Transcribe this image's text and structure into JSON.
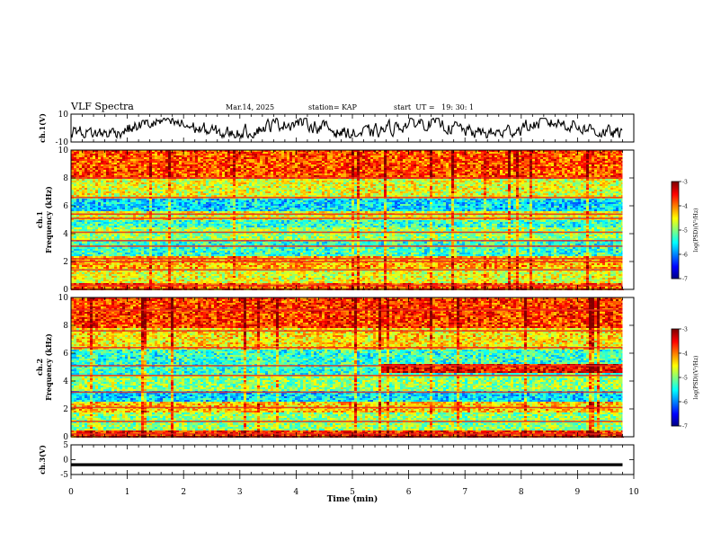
{
  "header": {
    "title": "VLF Spectra",
    "date": "Mar.14, 2025",
    "station": "station= KAP",
    "start": "start  UT =   19: 30: 1"
  },
  "chart_data": [
    {
      "type": "line",
      "panel": "ch1-waveform",
      "ylabel": "ch.1(V)",
      "ylim": [
        -10,
        10
      ],
      "yticks": [
        "10",
        "-10"
      ],
      "xlim": [
        0,
        10
      ],
      "x_extent_min": 9.8,
      "note_values": "continuous noisy waveform oscillating roughly between -6 and +6 V"
    },
    {
      "type": "heatmap",
      "panel": "ch1-spectrogram",
      "ylabel": "ch.1\nFrequency (kHz)",
      "ylabel_lines": [
        "ch.1",
        "Frequency (kHz)"
      ],
      "ylim": [
        0,
        10
      ],
      "yticks": [
        "0",
        "2",
        "4",
        "6",
        "8",
        "10"
      ],
      "xlim": [
        0,
        10
      ],
      "x_extent_min": 9.8,
      "colorbar": {
        "label": "log(PSD)(V²/Hz)",
        "range": [
          -7,
          -3
        ],
        "ticks": [
          "-3",
          "-4",
          "-5",
          "-6",
          "-7"
        ],
        "colormap": "jet"
      },
      "horizontal_lines_khz": [
        0.3,
        1.4,
        2.0,
        2.2,
        3.1,
        3.5,
        4.1,
        5.1,
        5.4,
        6.6,
        8.0
      ],
      "bands_log_psd": [
        {
          "from": 0,
          "to": 0.5,
          "level": -3.8
        },
        {
          "from": 0.5,
          "to": 1.5,
          "level": -4.6
        },
        {
          "from": 1.5,
          "to": 2.4,
          "level": -4.2
        },
        {
          "from": 2.4,
          "to": 3.6,
          "level": -5.3
        },
        {
          "from": 3.6,
          "to": 4.4,
          "level": -4.9
        },
        {
          "from": 4.4,
          "to": 5.0,
          "level": -5.3
        },
        {
          "from": 5.0,
          "to": 5.6,
          "level": -4.6
        },
        {
          "from": 5.6,
          "to": 6.5,
          "level": -5.6
        },
        {
          "from": 6.5,
          "to": 8.0,
          "level": -4.6
        },
        {
          "from": 8.0,
          "to": 10,
          "level": -3.8
        }
      ]
    },
    {
      "type": "heatmap",
      "panel": "ch2-spectrogram",
      "ylabel_lines": [
        "ch.2",
        "Frequency (kHz)"
      ],
      "ylim": [
        0,
        10
      ],
      "yticks": [
        "0",
        "2",
        "4",
        "6",
        "8",
        "10"
      ],
      "xlim": [
        0,
        10
      ],
      "x_extent_min": 9.8,
      "colorbar": {
        "label": "log(PSD)(V²/Hz)",
        "range": [
          -7,
          -3
        ],
        "ticks": [
          "-3",
          "-4",
          "-5",
          "-6",
          "-7"
        ],
        "colormap": "jet"
      },
      "horizontal_lines_khz": [
        0.2,
        1.1,
        2.1,
        3.2,
        4.4,
        5.1,
        6.4,
        7.6,
        9.1
      ],
      "bands_log_psd": [
        {
          "from": 0,
          "to": 0.4,
          "level": -3.6
        },
        {
          "from": 0.4,
          "to": 1.8,
          "level": -4.9
        },
        {
          "from": 1.8,
          "to": 2.5,
          "level": -4.3
        },
        {
          "from": 2.5,
          "to": 3.3,
          "level": -5.6
        },
        {
          "from": 3.3,
          "to": 4.5,
          "level": -4.9
        },
        {
          "from": 4.5,
          "to": 6.2,
          "level": -5.3
        },
        {
          "from": 6.2,
          "to": 7.8,
          "level": -4.4
        },
        {
          "from": 7.8,
          "to": 10,
          "level": -3.7
        }
      ]
    },
    {
      "type": "line",
      "panel": "ch3-waveform",
      "ylabel": "ch.3(V)",
      "ylim": [
        -5,
        5
      ],
      "yticks": [
        "5",
        "0",
        "-5"
      ],
      "xlim": [
        0,
        10
      ],
      "x_extent_min": 9.8,
      "level_band": [
        -2.2,
        -1.2
      ]
    }
  ],
  "xaxis": {
    "label": "Time (min)",
    "ticks": [
      "0",
      "1",
      "2",
      "3",
      "4",
      "5",
      "6",
      "7",
      "8",
      "9",
      "10"
    ]
  }
}
